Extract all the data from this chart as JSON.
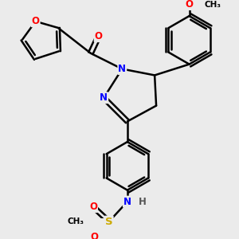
{
  "bg_color": "#ebebeb",
  "bond_color": "#000000",
  "bond_width": 1.8,
  "atom_colors": {
    "O": "#ff0000",
    "N": "#0000ff",
    "S": "#ccaa00",
    "C": "#000000",
    "H": "#555555"
  },
  "font_size": 8.5,
  "aromatic_inner_ratio": 0.75
}
